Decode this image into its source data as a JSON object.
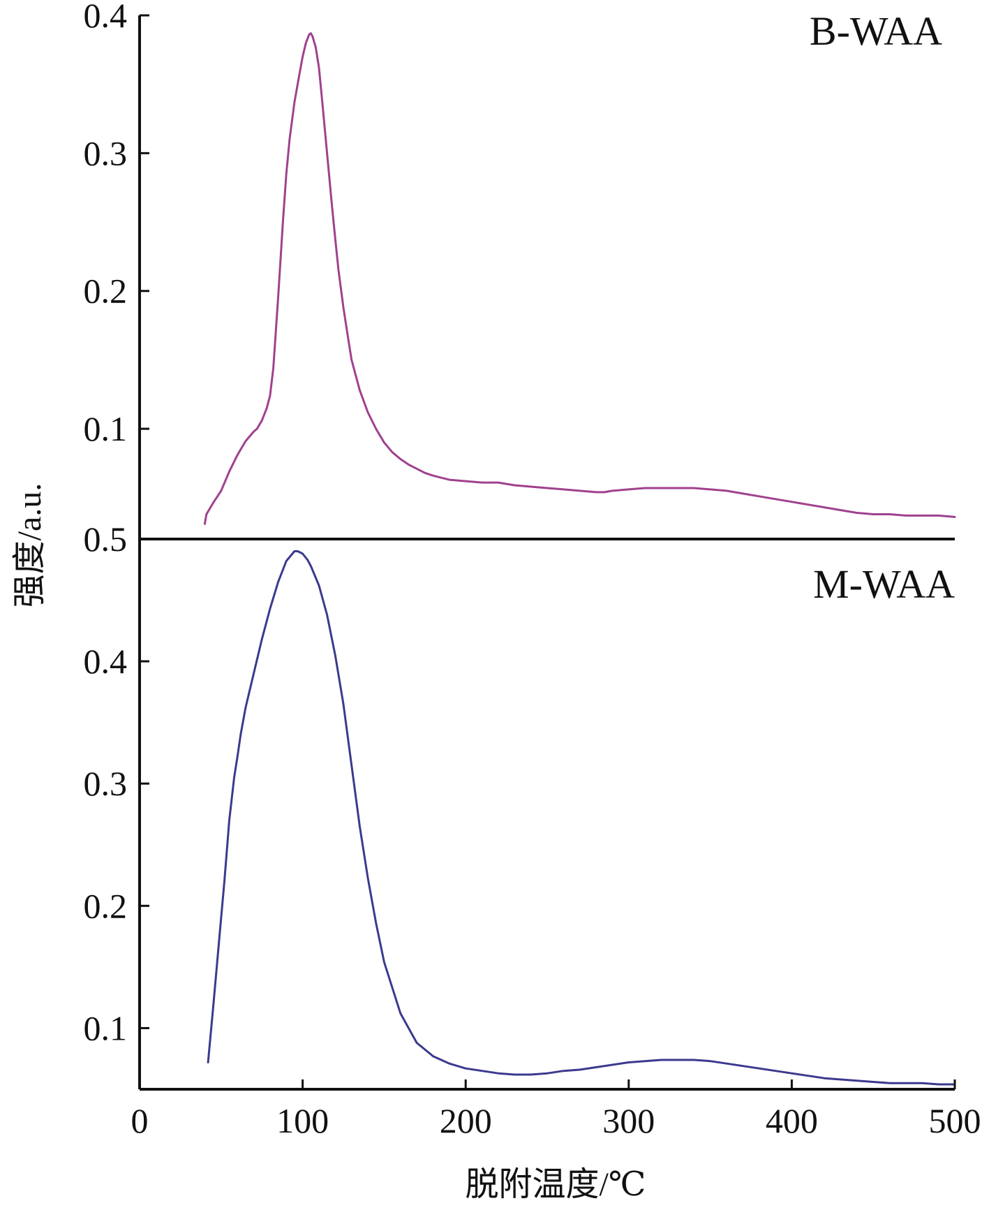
{
  "chart_data": {
    "type": "line",
    "layout": "stacked-panels",
    "xlabel": "脱附温度/℃",
    "ylabel": "强度/a.u.",
    "xlim": [
      0,
      500
    ],
    "x_ticks": [
      "0",
      "100",
      "200",
      "300",
      "400",
      "500"
    ],
    "x_tick_values": [
      0,
      100,
      200,
      300,
      400,
      500
    ],
    "grid": false,
    "panels": [
      {
        "label": "B-WAA",
        "position": "top",
        "color": "#a0418e",
        "ylim": [
          0.02,
          0.4
        ],
        "y_ticks": [
          "0.1",
          "0.2",
          "0.3",
          "0.4"
        ],
        "y_tick_values": [
          0.1,
          0.2,
          0.3,
          0.4
        ],
        "x": [
          40,
          41,
          45,
          50,
          55,
          60,
          65,
          70,
          72,
          75,
          78,
          80,
          82,
          85,
          88,
          90,
          92,
          95,
          98,
          100,
          102,
          104,
          105,
          106,
          108,
          110,
          112,
          115,
          118,
          120,
          122,
          125,
          128,
          130,
          135,
          140,
          145,
          150,
          155,
          160,
          165,
          170,
          175,
          180,
          190,
          200,
          210,
          220,
          230,
          240,
          250,
          260,
          270,
          280,
          285,
          290,
          300,
          310,
          320,
          330,
          340,
          350,
          360,
          370,
          380,
          390,
          400,
          410,
          420,
          430,
          440,
          450,
          460,
          470,
          480,
          490,
          500
        ],
        "y": [
          0.031,
          0.038,
          0.046,
          0.055,
          0.069,
          0.081,
          0.091,
          0.098,
          0.1,
          0.106,
          0.115,
          0.124,
          0.144,
          0.196,
          0.252,
          0.285,
          0.31,
          0.337,
          0.357,
          0.37,
          0.38,
          0.386,
          0.387,
          0.385,
          0.377,
          0.362,
          0.338,
          0.3,
          0.262,
          0.238,
          0.215,
          0.188,
          0.165,
          0.15,
          0.128,
          0.112,
          0.1,
          0.09,
          0.083,
          0.078,
          0.074,
          0.071,
          0.068,
          0.066,
          0.063,
          0.062,
          0.061,
          0.061,
          0.059,
          0.058,
          0.057,
          0.056,
          0.055,
          0.054,
          0.054,
          0.055,
          0.056,
          0.057,
          0.057,
          0.057,
          0.057,
          0.056,
          0.055,
          0.053,
          0.051,
          0.049,
          0.047,
          0.045,
          0.043,
          0.041,
          0.039,
          0.038,
          0.038,
          0.037,
          0.037,
          0.037,
          0.036
        ]
      },
      {
        "label": "M-WAA",
        "position": "bottom",
        "color": "#3b3a8e",
        "ylim": [
          0.05,
          0.5
        ],
        "y_ticks": [
          "0.1",
          "0.2",
          "0.3",
          "0.4",
          "0.5"
        ],
        "y_tick_values": [
          0.1,
          0.2,
          0.3,
          0.4,
          0.5
        ],
        "x": [
          42,
          45,
          50,
          52,
          55,
          58,
          60,
          62,
          65,
          70,
          75,
          80,
          85,
          90,
          95,
          97,
          100,
          103,
          105,
          110,
          115,
          120,
          125,
          130,
          135,
          140,
          145,
          150,
          160,
          170,
          180,
          190,
          200,
          210,
          220,
          230,
          240,
          250,
          260,
          270,
          280,
          290,
          300,
          310,
          320,
          330,
          340,
          350,
          360,
          370,
          380,
          390,
          400,
          410,
          420,
          430,
          440,
          450,
          460,
          470,
          480,
          490,
          500
        ],
        "y": [
          0.072,
          0.115,
          0.19,
          0.22,
          0.27,
          0.305,
          0.322,
          0.34,
          0.362,
          0.39,
          0.418,
          0.443,
          0.465,
          0.482,
          0.49,
          0.49,
          0.488,
          0.483,
          0.478,
          0.462,
          0.438,
          0.405,
          0.365,
          0.315,
          0.265,
          0.223,
          0.186,
          0.154,
          0.112,
          0.088,
          0.077,
          0.071,
          0.067,
          0.065,
          0.063,
          0.062,
          0.062,
          0.063,
          0.065,
          0.066,
          0.068,
          0.07,
          0.072,
          0.073,
          0.074,
          0.074,
          0.074,
          0.073,
          0.071,
          0.069,
          0.067,
          0.065,
          0.063,
          0.061,
          0.059,
          0.058,
          0.057,
          0.056,
          0.055,
          0.055,
          0.055,
          0.054,
          0.054
        ]
      }
    ]
  }
}
